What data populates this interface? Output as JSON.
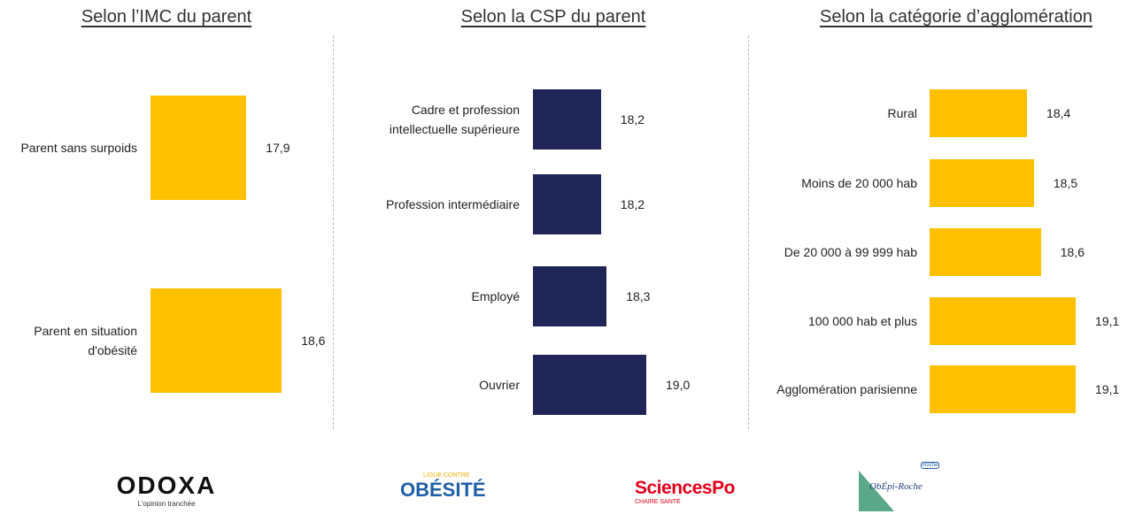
{
  "chart_data": [
    {
      "type": "bar",
      "orientation": "horizontal",
      "title": "Selon l’IMC du parent",
      "categories": [
        "Parent sans surpoids",
        "Parent en situation d'obésité"
      ],
      "values": [
        17.9,
        18.6
      ],
      "value_labels": [
        "17,9",
        "18,6"
      ],
      "color": "#ffc000",
      "xlim": [
        16,
        19
      ]
    },
    {
      "type": "bar",
      "orientation": "horizontal",
      "title": "Selon la CSP du parent",
      "categories": [
        "Cadre et profession intellectuelle supérieure",
        "Profession intermédiaire",
        "Employé",
        "Ouvrier"
      ],
      "values": [
        18.2,
        18.2,
        18.3,
        19.0
      ],
      "value_labels": [
        "18,2",
        "18,2",
        "18,3",
        "19,0"
      ],
      "color": "#1f2557",
      "xlim": [
        17,
        19.5
      ]
    },
    {
      "type": "bar",
      "orientation": "horizontal",
      "title": "Selon la catégorie d’agglomération",
      "categories": [
        "Rural",
        "Moins de 20 000 hab",
        "De 20 000 à 99 999 hab",
        "100 000 hab et plus",
        "Agglomération parisienne"
      ],
      "values": [
        18.4,
        18.5,
        18.6,
        19.1,
        19.1
      ],
      "value_labels": [
        "18,4",
        "18,5",
        "18,6",
        "19,1",
        "19,1"
      ],
      "color": "#ffc000",
      "xlim": [
        17,
        19.5
      ]
    }
  ],
  "logos": {
    "odoxa": "ODOXA",
    "odoxa_tagline": "L'opinion tranchée",
    "ligue_top": "LIGUE CONTRE",
    "ligue_main": "OBÉSITÉ",
    "sciencespo": "SciencesPo",
    "sciencespo_sub": "CHAIRE SANTÉ",
    "obepi": "ObÉpi-Roche",
    "roche": "Roche"
  }
}
